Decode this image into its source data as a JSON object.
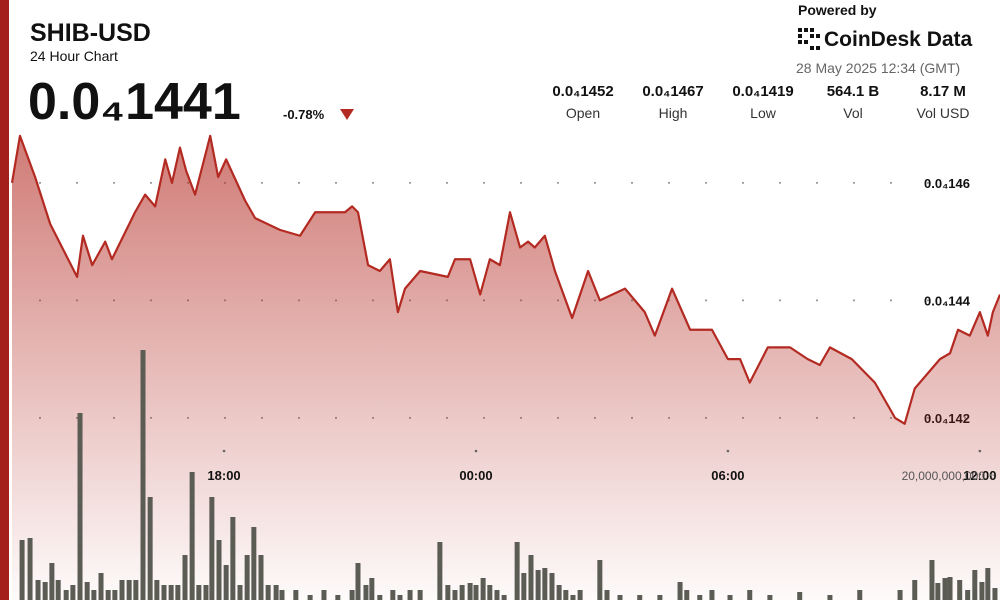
{
  "header": {
    "symbol": "SHIB-USD",
    "subtitle": "24 Hour Chart",
    "price": "0.0₄1441",
    "change": "-0.78%",
    "powered_by": "Powered by",
    "brand": "CoinDesk Data",
    "timestamp": "28 May 2025 12:34 (GMT)",
    "stats": [
      {
        "value": "0.0₄1452",
        "label": "Open"
      },
      {
        "value": "0.0₄1467",
        "label": "High"
      },
      {
        "value": "0.0₄1419",
        "label": "Low"
      },
      {
        "value": "564.1 B",
        "label": "Vol"
      },
      {
        "value": "8.17 M",
        "label": "Vol USD"
      }
    ]
  },
  "chart_data": {
    "type": "line",
    "xlim": [
      12.95,
      36.48
    ],
    "xticks": [
      {
        "value": 18,
        "label": "18:00"
      },
      {
        "value": 24,
        "label": "00:00"
      },
      {
        "value": 30,
        "label": "06:00"
      },
      {
        "value": 36,
        "label": "12:00"
      }
    ],
    "ylim": [
      1.389e-05,
      1.469e-05
    ],
    "yticks": [
      {
        "value": 1.42e-05,
        "label": "0.0₄142"
      },
      {
        "value": 1.44e-05,
        "label": "0.0₄144"
      },
      {
        "value": 1.46e-05,
        "label": "0.0₄146"
      }
    ],
    "y2lim": [
      0,
      75200000000
    ],
    "y2ticks": [
      {
        "value": 20000000000,
        "label": "20,000,000,000"
      }
    ],
    "grid": true,
    "series": [
      {
        "type": "bar",
        "axis": "y2",
        "color": "#5b5c54",
        "x": [
          13.19,
          13.38,
          13.57,
          13.74,
          13.9,
          14.05,
          14.24,
          14.4,
          14.57,
          14.74,
          14.9,
          15.07,
          15.24,
          15.4,
          15.57,
          15.74,
          15.9,
          16.07,
          16.24,
          16.4,
          16.57,
          16.74,
          16.9,
          17.07,
          17.24,
          17.4,
          17.57,
          17.71,
          17.88,
          18.05,
          18.21,
          18.38,
          18.55,
          18.71,
          18.88,
          19.05,
          19.24,
          19.38,
          19.71,
          20.05,
          20.38,
          20.71,
          21.05,
          21.19,
          21.38,
          21.52,
          21.71,
          22.02,
          22.19,
          22.43,
          22.67,
          23.14,
          23.33,
          23.5,
          23.67,
          23.86,
          24,
          24.17,
          24.33,
          24.5,
          24.67,
          24.98,
          25.14,
          25.31,
          25.48,
          25.64,
          25.81,
          25.98,
          26.14,
          26.31,
          26.48,
          26.95,
          27.12,
          27.43,
          27.9,
          28.38,
          28.86,
          29.02,
          29.33,
          29.62,
          30.05,
          30.52,
          31,
          31.71,
          32.43,
          33.14,
          34.1,
          34.45,
          34.86,
          35,
          35.17,
          35.29,
          35.52,
          35.71,
          35.88,
          36.05,
          36.19,
          36.36
        ],
        "values": [
          9600000000,
          9920000000,
          3200000000,
          2880000000,
          5920000000,
          3200000000,
          1600000000,
          2400000000,
          29920000000,
          2880000000,
          1600000000,
          4320000000,
          1600000000,
          1600000000,
          3200000000,
          3200000000,
          3200000000,
          40000000000,
          16480000000,
          3200000000,
          2400000000,
          2400000000,
          2400000000,
          7200000000,
          20480000000,
          2400000000,
          2400000000,
          16480000000,
          9600000000,
          5600000000,
          13280000000,
          2400000000,
          7200000000,
          11680000000,
          7200000000,
          2400000000,
          2400000000,
          1600000000,
          1600000000,
          800000000,
          1600000000,
          800000000,
          1600000000,
          5920000000,
          2400000000,
          3520000000,
          800000000,
          1600000000,
          800000000,
          1600000000,
          1600000000,
          9280000000,
          2400000000,
          1600000000,
          2400000000,
          2720000000,
          2400000000,
          3520000000,
          2400000000,
          1600000000,
          800000000,
          9280000000,
          4320000000,
          7200000000,
          4800000000,
          5120000000,
          4320000000,
          2400000000,
          1600000000,
          800000000,
          1600000000,
          6400000000,
          1600000000,
          800000000,
          800000000,
          800000000,
          2880000000,
          1600000000,
          800000000,
          1600000000,
          800000000,
          1600000000,
          800000000,
          1280000000,
          800000000,
          1600000000,
          1600000000,
          3200000000,
          6400000000,
          2720000000,
          3520000000,
          3680000000,
          3200000000,
          1600000000,
          4800000000,
          2880000000,
          5120000000,
          1920000000
        ]
      },
      {
        "type": "area",
        "color": "#b32a22",
        "x": [
          12.95,
          13.14,
          13.5,
          13.86,
          14.5,
          14.64,
          14.86,
          15.17,
          15.33,
          15.88,
          16.12,
          16.36,
          16.6,
          16.76,
          16.95,
          17.1,
          17.31,
          17.67,
          17.86,
          18.05,
          18.5,
          18.74,
          19.33,
          19.81,
          20.17,
          20.88,
          21.05,
          21.19,
          21.43,
          21.71,
          21.95,
          22.14,
          22.31,
          22.67,
          23.33,
          23.5,
          23.86,
          24.1,
          24.33,
          24.57,
          24.81,
          25.05,
          25.24,
          25.4,
          25.64,
          25.88,
          26.29,
          26.67,
          26.95,
          27.55,
          28.02,
          28.26,
          28.67,
          29.1,
          29.62,
          30,
          30.29,
          30.52,
          30.95,
          31.48,
          31.9,
          32.19,
          32.43,
          32.95,
          33.5,
          33.98,
          34.21,
          34.45,
          35.05,
          35.29,
          35.48,
          35.76,
          36,
          36.19,
          36.31,
          36.48
        ],
        "values": [
          1.46e-05,
          1.468e-05,
          1.461e-05,
          1.453e-05,
          1.444e-05,
          1.451e-05,
          1.446e-05,
          1.45e-05,
          1.447e-05,
          1.455e-05,
          1.458e-05,
          1.456e-05,
          1.464e-05,
          1.46e-05,
          1.466e-05,
          1.462e-05,
          1.458e-05,
          1.468e-05,
          1.461e-05,
          1.464e-05,
          1.457e-05,
          1.454e-05,
          1.452e-05,
          1.451e-05,
          1.455e-05,
          1.455e-05,
          1.456e-05,
          1.455e-05,
          1.446e-05,
          1.445e-05,
          1.447e-05,
          1.438e-05,
          1.442e-05,
          1.445e-05,
          1.444e-05,
          1.447e-05,
          1.447e-05,
          1.441e-05,
          1.447e-05,
          1.446e-05,
          1.455e-05,
          1.449e-05,
          1.45e-05,
          1.449e-05,
          1.451e-05,
          1.445e-05,
          1.437e-05,
          1.445e-05,
          1.44e-05,
          1.442e-05,
          1.438e-05,
          1.434e-05,
          1.442e-05,
          1.435e-05,
          1.435e-05,
          1.43e-05,
          1.43e-05,
          1.426e-05,
          1.432e-05,
          1.432e-05,
          1.43e-05,
          1.429e-05,
          1.432e-05,
          1.43e-05,
          1.426e-05,
          1.42e-05,
          1.419e-05,
          1.425e-05,
          1.43e-05,
          1.431e-05,
          1.435e-05,
          1.434e-05,
          1.438e-05,
          1.434e-05,
          1.438e-05,
          1.441e-05
        ]
      }
    ]
  }
}
